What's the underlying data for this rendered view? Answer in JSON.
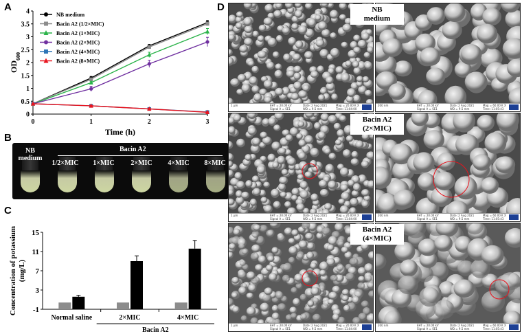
{
  "panels": {
    "a": "A",
    "b": "B",
    "c": "C",
    "d": "D"
  },
  "chart_data": [
    {
      "type": "line",
      "xlabel": "Time (h)",
      "ylabel": "OD600",
      "ylabel_main": "OD",
      "ylabel_sub": "600",
      "x": [
        0,
        1,
        2,
        3
      ],
      "xticks": [
        "0",
        "1",
        "2",
        "3"
      ],
      "ylim": [
        0,
        4
      ],
      "yticks": [
        "0",
        "0.5",
        "1",
        "1.5",
        "2",
        "2.5",
        "3",
        "3.5",
        "4"
      ],
      "legend": "top-left",
      "series": [
        {
          "name": "NB medium",
          "values": [
            0.4,
            1.4,
            2.65,
            3.55
          ],
          "err": [
            0.02,
            0.06,
            0.05,
            0.08
          ],
          "color": "#000000",
          "marker": "circle"
        },
        {
          "name": "Bacin A2 (1/2×MIC)",
          "values": [
            0.4,
            1.35,
            2.6,
            3.5
          ],
          "err": [
            0.02,
            0.05,
            0.06,
            0.07
          ],
          "color": "#8c8c8c",
          "marker": "square"
        },
        {
          "name": "Bacin A2 (1×MIC)",
          "values": [
            0.4,
            1.22,
            2.3,
            3.2
          ],
          "err": [
            0.02,
            0.05,
            0.1,
            0.12
          ],
          "color": "#2bb34a",
          "marker": "triangle"
        },
        {
          "name": "Bacin A2 (2×MIC)",
          "values": [
            0.4,
            0.98,
            1.95,
            2.8
          ],
          "err": [
            0.02,
            0.1,
            0.14,
            0.18
          ],
          "color": "#7030a0",
          "marker": "circle"
        },
        {
          "name": "Bacin A2 (4×MIC)",
          "values": [
            0.4,
            0.32,
            0.2,
            0.08
          ],
          "err": [
            0.02,
            0.02,
            0.02,
            0.02
          ],
          "color": "#2e75b6",
          "marker": "square"
        },
        {
          "name": "Bacin A2 (8×MIC)",
          "values": [
            0.4,
            0.32,
            0.2,
            0.07
          ],
          "err": [
            0.02,
            0.02,
            0.02,
            0.02
          ],
          "color": "#e8141e",
          "marker": "triangle"
        }
      ]
    },
    {
      "type": "bar",
      "ylabel": "Concentration of potassium (mg/L)",
      "ylabel_line1": "Concentration of potassium",
      "ylabel_line2": "(mg/L)",
      "categories": [
        "Normal saline",
        "2×MIC",
        "4×MIC"
      ],
      "group_label": "Bacin A2",
      "ylim": [
        -1,
        15
      ],
      "yticks": [
        "-1",
        "3",
        "7",
        "11",
        "15"
      ],
      "series": [
        {
          "values": [
            0.4,
            0.4,
            0.4
          ],
          "err": [
            0,
            0,
            0
          ],
          "color": "#8c8c8c"
        },
        {
          "values": [
            1.6,
            9.0,
            11.6
          ],
          "err": [
            0.3,
            1.1,
            1.7
          ],
          "color": "#000000"
        }
      ]
    }
  ],
  "tubes": {
    "header": "Bacin A2",
    "control": [
      "NB",
      "medium"
    ],
    "labels": [
      "1/2×MIC",
      "1×MIC",
      "2×MIC",
      "4×MIC",
      "8×MIC"
    ]
  },
  "sem": {
    "rows": [
      {
        "label": [
          "NB",
          "medium"
        ]
      },
      {
        "label": [
          "Bacin A2",
          "(2×MIC)"
        ]
      },
      {
        "label": [
          "Bacin A2",
          "(4×MIC)"
        ]
      }
    ],
    "info_low": [
      "EHT = 20.00 kV",
      "Signal A = SE1",
      "Date :2 Aug 2021",
      "WD = 9.5 mm",
      "Mag = 20.00 K X",
      "Time :11:04:00"
    ],
    "info_high": [
      "EHT = 20.00 kV",
      "Signal A = SE1",
      "Date :2 Aug 2021",
      "WD = 9.5 mm",
      "Mag = 60.00 K X",
      "Time :11:05:43"
    ],
    "scale_low": "1 µm",
    "scale_high": "200 nm"
  }
}
